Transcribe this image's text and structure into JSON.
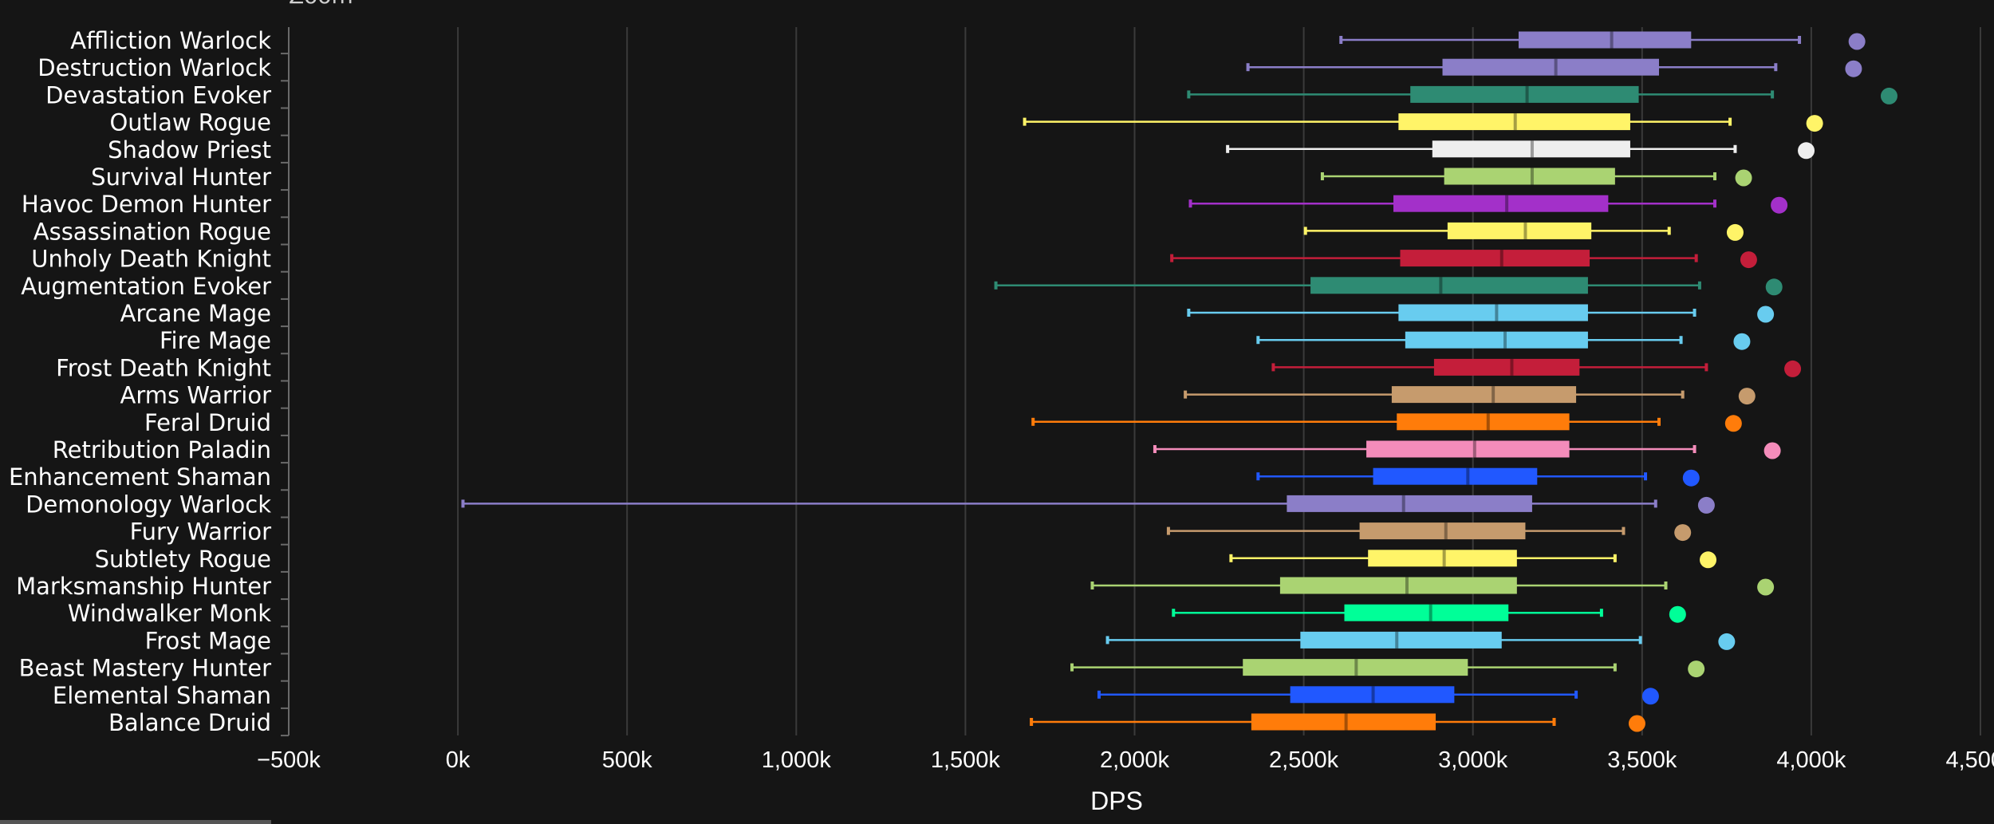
{
  "zoom_label": "Zoom",
  "chart_data": {
    "type": "boxplot",
    "orientation": "horizontal",
    "xlabel": "DPS",
    "xlim": [
      -500,
      4500
    ],
    "xunit": "k",
    "xticks": [
      {
        "value": -500,
        "label": "−500k"
      },
      {
        "value": 0,
        "label": "0k"
      },
      {
        "value": 500,
        "label": "500k"
      },
      {
        "value": 1000,
        "label": "1,000k"
      },
      {
        "value": 1500,
        "label": "1,500k"
      },
      {
        "value": 2000,
        "label": "2,000k"
      },
      {
        "value": 2500,
        "label": "2,500k"
      },
      {
        "value": 3000,
        "label": "3,000k"
      },
      {
        "value": 3500,
        "label": "3,500k"
      },
      {
        "value": 4000,
        "label": "4,000k"
      },
      {
        "value": 4500,
        "label": "4,500k"
      }
    ],
    "grid": true,
    "series": [
      {
        "name": "Affliction Warlock",
        "color": "#8b7ec8",
        "min": 2610,
        "q1": 3135,
        "median": 3410,
        "q3": 3645,
        "max": 3965,
        "top": 4135
      },
      {
        "name": "Destruction Warlock",
        "color": "#8b7ec8",
        "min": 2335,
        "q1": 2910,
        "median": 3245,
        "q3": 3550,
        "max": 3895,
        "top": 4125
      },
      {
        "name": "Devastation Evoker",
        "color": "#2e8b73",
        "min": 2160,
        "q1": 2815,
        "median": 3160,
        "q3": 3490,
        "max": 3885,
        "top": 4230
      },
      {
        "name": "Outlaw Rogue",
        "color": "#fff468",
        "min": 1675,
        "q1": 2780,
        "median": 3125,
        "q3": 3465,
        "max": 3760,
        "top": 4010
      },
      {
        "name": "Shadow Priest",
        "color": "#eeeeee",
        "min": 2275,
        "q1": 2880,
        "median": 3175,
        "q3": 3465,
        "max": 3775,
        "top": 3985
      },
      {
        "name": "Survival Hunter",
        "color": "#aad372",
        "min": 2555,
        "q1": 2915,
        "median": 3175,
        "q3": 3420,
        "max": 3715,
        "top": 3800
      },
      {
        "name": "Havoc Demon Hunter",
        "color": "#a330c9",
        "min": 2165,
        "q1": 2765,
        "median": 3100,
        "q3": 3400,
        "max": 3715,
        "top": 3905
      },
      {
        "name": "Assassination Rogue",
        "color": "#fff468",
        "min": 2505,
        "q1": 2925,
        "median": 3155,
        "q3": 3350,
        "max": 3580,
        "top": 3775
      },
      {
        "name": "Unholy Death Knight",
        "color": "#c41e3a",
        "min": 2110,
        "q1": 2785,
        "median": 3085,
        "q3": 3345,
        "max": 3660,
        "top": 3815
      },
      {
        "name": "Augmentation Evoker",
        "color": "#2e8b73",
        "min": 1590,
        "q1": 2520,
        "median": 2905,
        "q3": 3340,
        "max": 3670,
        "top": 3890
      },
      {
        "name": "Arcane Mage",
        "color": "#68ccef",
        "min": 2160,
        "q1": 2780,
        "median": 3070,
        "q3": 3340,
        "max": 3655,
        "top": 3865
      },
      {
        "name": "Fire Mage",
        "color": "#68ccef",
        "min": 2365,
        "q1": 2800,
        "median": 3095,
        "q3": 3340,
        "max": 3615,
        "top": 3795
      },
      {
        "name": "Frost Death Knight",
        "color": "#c41e3a",
        "min": 2410,
        "q1": 2885,
        "median": 3115,
        "q3": 3315,
        "max": 3690,
        "top": 3945
      },
      {
        "name": "Arms Warrior",
        "color": "#c69b6d",
        "min": 2150,
        "q1": 2760,
        "median": 3060,
        "q3": 3305,
        "max": 3620,
        "top": 3810
      },
      {
        "name": "Feral Druid",
        "color": "#ff7c0a",
        "min": 1700,
        "q1": 2775,
        "median": 3045,
        "q3": 3285,
        "max": 3550,
        "top": 3770
      },
      {
        "name": "Retribution Paladin",
        "color": "#f48cba",
        "min": 2060,
        "q1": 2685,
        "median": 3005,
        "q3": 3285,
        "max": 3655,
        "top": 3885
      },
      {
        "name": "Enhancement Shaman",
        "color": "#2158ff",
        "min": 2365,
        "q1": 2705,
        "median": 2985,
        "q3": 3190,
        "max": 3510,
        "top": 3645
      },
      {
        "name": "Demonology Warlock",
        "color": "#8b7ec8",
        "min": 15,
        "q1": 2450,
        "median": 2795,
        "q3": 3175,
        "max": 3540,
        "top": 3690
      },
      {
        "name": "Fury Warrior",
        "color": "#c69b6d",
        "min": 2100,
        "q1": 2665,
        "median": 2920,
        "q3": 3155,
        "max": 3445,
        "top": 3620
      },
      {
        "name": "Subtlety Rogue",
        "color": "#fff468",
        "min": 2285,
        "q1": 2690,
        "median": 2915,
        "q3": 3130,
        "max": 3420,
        "top": 3695
      },
      {
        "name": "Marksmanship Hunter",
        "color": "#aad372",
        "min": 1875,
        "q1": 2430,
        "median": 2805,
        "q3": 3130,
        "max": 3570,
        "top": 3865
      },
      {
        "name": "Windwalker Monk",
        "color": "#00ff98",
        "min": 2115,
        "q1": 2620,
        "median": 2875,
        "q3": 3105,
        "max": 3380,
        "top": 3605
      },
      {
        "name": "Frost Mage",
        "color": "#68ccef",
        "min": 1920,
        "q1": 2490,
        "median": 2775,
        "q3": 3085,
        "max": 3495,
        "top": 3750
      },
      {
        "name": "Beast Mastery Hunter",
        "color": "#aad372",
        "min": 1815,
        "q1": 2320,
        "median": 2655,
        "q3": 2985,
        "max": 3420,
        "top": 3660
      },
      {
        "name": "Elemental Shaman",
        "color": "#2158ff",
        "min": 1895,
        "q1": 2460,
        "median": 2705,
        "q3": 2945,
        "max": 3305,
        "top": 3525
      },
      {
        "name": "Balance Druid",
        "color": "#ff7c0a",
        "min": 1695,
        "q1": 2345,
        "median": 2625,
        "q3": 2890,
        "max": 3240,
        "top": 3485
      }
    ]
  }
}
